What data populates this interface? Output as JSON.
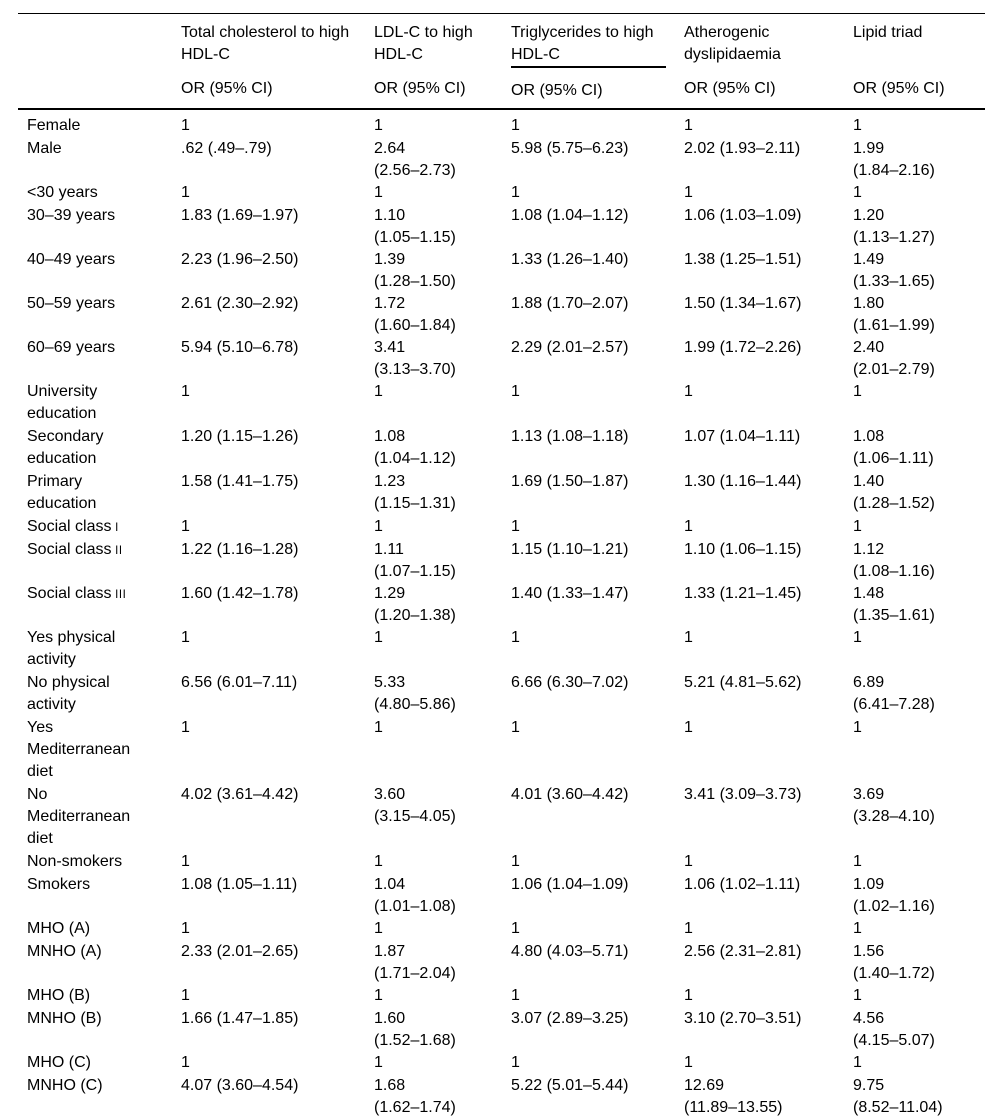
{
  "table": {
    "columns": [
      {
        "title": "Total cholesterol to high\nHDL-C",
        "subtitle": "OR (95% CI)",
        "underline": false
      },
      {
        "title": "LDL-C to high\nHDL-C",
        "subtitle": "OR (95% CI)",
        "underline": false
      },
      {
        "title": "Triglycerides to high\nHDL-C",
        "subtitle": "OR (95% CI)",
        "underline": true
      },
      {
        "title": "Atherogenic\ndyslipidaemia",
        "subtitle": "OR (95% CI)",
        "underline": false
      },
      {
        "title": "Lipid triad",
        "subtitle": "OR (95% CI)",
        "underline": false
      }
    ],
    "rows": [
      {
        "label": "Female",
        "values": [
          "1",
          "1",
          "1",
          "1",
          "1"
        ]
      },
      {
        "label": "Male",
        "values": [
          ".62 (.49–.79)",
          "2.64\n(2.56–2.73)",
          "5.98 (5.75–6.23)",
          "2.02 (1.93–2.11)",
          "1.99\n(1.84–2.16)"
        ]
      },
      {
        "label": "<30 years",
        "values": [
          "1",
          "1",
          "1",
          "1",
          "1"
        ]
      },
      {
        "label": "30–39 years",
        "values": [
          "1.83 (1.69–1.97)",
          "1.10\n(1.05–1.15)",
          "1.08 (1.04–1.12)",
          "1.06 (1.03–1.09)",
          "1.20\n(1.13–1.27)"
        ]
      },
      {
        "label": "40–49 years",
        "values": [
          "2.23 (1.96–2.50)",
          "1.39\n(1.28–1.50)",
          "1.33 (1.26–1.40)",
          "1.38 (1.25–1.51)",
          "1.49\n(1.33–1.65)"
        ]
      },
      {
        "label": "50–59 years",
        "values": [
          "2.61 (2.30–2.92)",
          "1.72\n(1.60–1.84)",
          "1.88 (1.70–2.07)",
          "1.50 (1.34–1.67)",
          "1.80\n(1.61–1.99)"
        ]
      },
      {
        "label": "60–69 years",
        "values": [
          "5.94 (5.10–6.78)",
          "3.41\n(3.13–3.70)",
          "2.29 (2.01–2.57)",
          "1.99 (1.72–2.26)",
          "2.40\n(2.01–2.79)"
        ]
      },
      {
        "label": "University\neducation",
        "values": [
          "1",
          "1",
          "1",
          "1",
          "1"
        ]
      },
      {
        "label": "Secondary\neducation",
        "values": [
          "1.20 (1.15–1.26)",
          "1.08\n(1.04–1.12)",
          "1.13 (1.08–1.18)",
          "1.07 (1.04–1.11)",
          "1.08\n(1.06–1.11)"
        ]
      },
      {
        "label": "Primary\neducation",
        "values": [
          "1.58 (1.41–1.75)",
          "1.23\n(1.15–1.31)",
          "1.69 (1.50–1.87)",
          "1.30 (1.16–1.44)",
          "1.40\n(1.28–1.52)"
        ]
      },
      {
        "label": "Social class",
        "suffix": "I",
        "values": [
          "1",
          "1",
          "1",
          "1",
          "1"
        ]
      },
      {
        "label": "Social class",
        "suffix": "II",
        "values": [
          "1.22 (1.16–1.28)",
          "1.11\n(1.07–1.15)",
          "1.15 (1.10–1.21)",
          "1.10 (1.06–1.15)",
          "1.12\n(1.08–1.16)"
        ]
      },
      {
        "label": "Social class",
        "suffix": "III",
        "values": [
          "1.60 (1.42–1.78)",
          "1.29\n(1.20–1.38)",
          "1.40 (1.33–1.47)",
          "1.33 (1.21–1.45)",
          "1.48\n(1.35–1.61)"
        ]
      },
      {
        "label": "Yes physical\nactivity",
        "values": [
          "1",
          "1",
          "1",
          "1",
          "1"
        ]
      },
      {
        "label": "No physical\nactivity",
        "values": [
          "6.56 (6.01–7.11)",
          "5.33\n(4.80–5.86)",
          "6.66 (6.30–7.02)",
          "5.21 (4.81–5.62)",
          "6.89\n(6.41–7.28)"
        ]
      },
      {
        "label": "Yes\nMediterranean\ndiet",
        "values": [
          "1",
          "1",
          "1",
          "1",
          "1"
        ]
      },
      {
        "label": "No\nMediterranean\ndiet",
        "values": [
          "4.02 (3.61–4.42)",
          "3.60\n(3.15–4.05)",
          "4.01 (3.60–4.42)",
          "3.41 (3.09–3.73)",
          "3.69\n(3.28–4.10)"
        ]
      },
      {
        "label": "Non-smokers",
        "values": [
          "1",
          "1",
          "1",
          "1",
          "1"
        ]
      },
      {
        "label": "Smokers",
        "values": [
          "1.08 (1.05–1.11)",
          "1.04\n(1.01–1.08)",
          "1.06 (1.04–1.09)",
          "1.06 (1.02–1.11)",
          "1.09\n(1.02–1.16)"
        ]
      },
      {
        "label": "MHO (A)",
        "values": [
          "1",
          "1",
          "1",
          "1",
          "1"
        ]
      },
      {
        "label": "MNHO (A)",
        "values": [
          "2.33 (2.01–2.65)",
          "1.87\n(1.71–2.04)",
          "4.80 (4.03–5.71)",
          "2.56 (2.31–2.81)",
          "1.56\n(1.40–1.72)"
        ]
      },
      {
        "label": "MHO (B)",
        "values": [
          "1",
          "1",
          "1",
          "1",
          "1"
        ]
      },
      {
        "label": "MNHO (B)",
        "values": [
          "1.66 (1.47–1.85)",
          "1.60\n(1.52–1.68)",
          "3.07 (2.89–3.25)",
          "3.10 (2.70–3.51)",
          "4.56\n(4.15–5.07)"
        ]
      },
      {
        "label": "MHO (C)",
        "values": [
          "1",
          "1",
          "1",
          "1",
          "1"
        ]
      },
      {
        "label": "MNHO (C)",
        "values": [
          "4.07 (3.60–4.54)",
          "1.68\n(1.62–1.74)",
          "5.22 (5.01–5.44)",
          "12.69\n(11.89–13.55)",
          "9.75\n(8.52–11.04)"
        ]
      }
    ]
  }
}
